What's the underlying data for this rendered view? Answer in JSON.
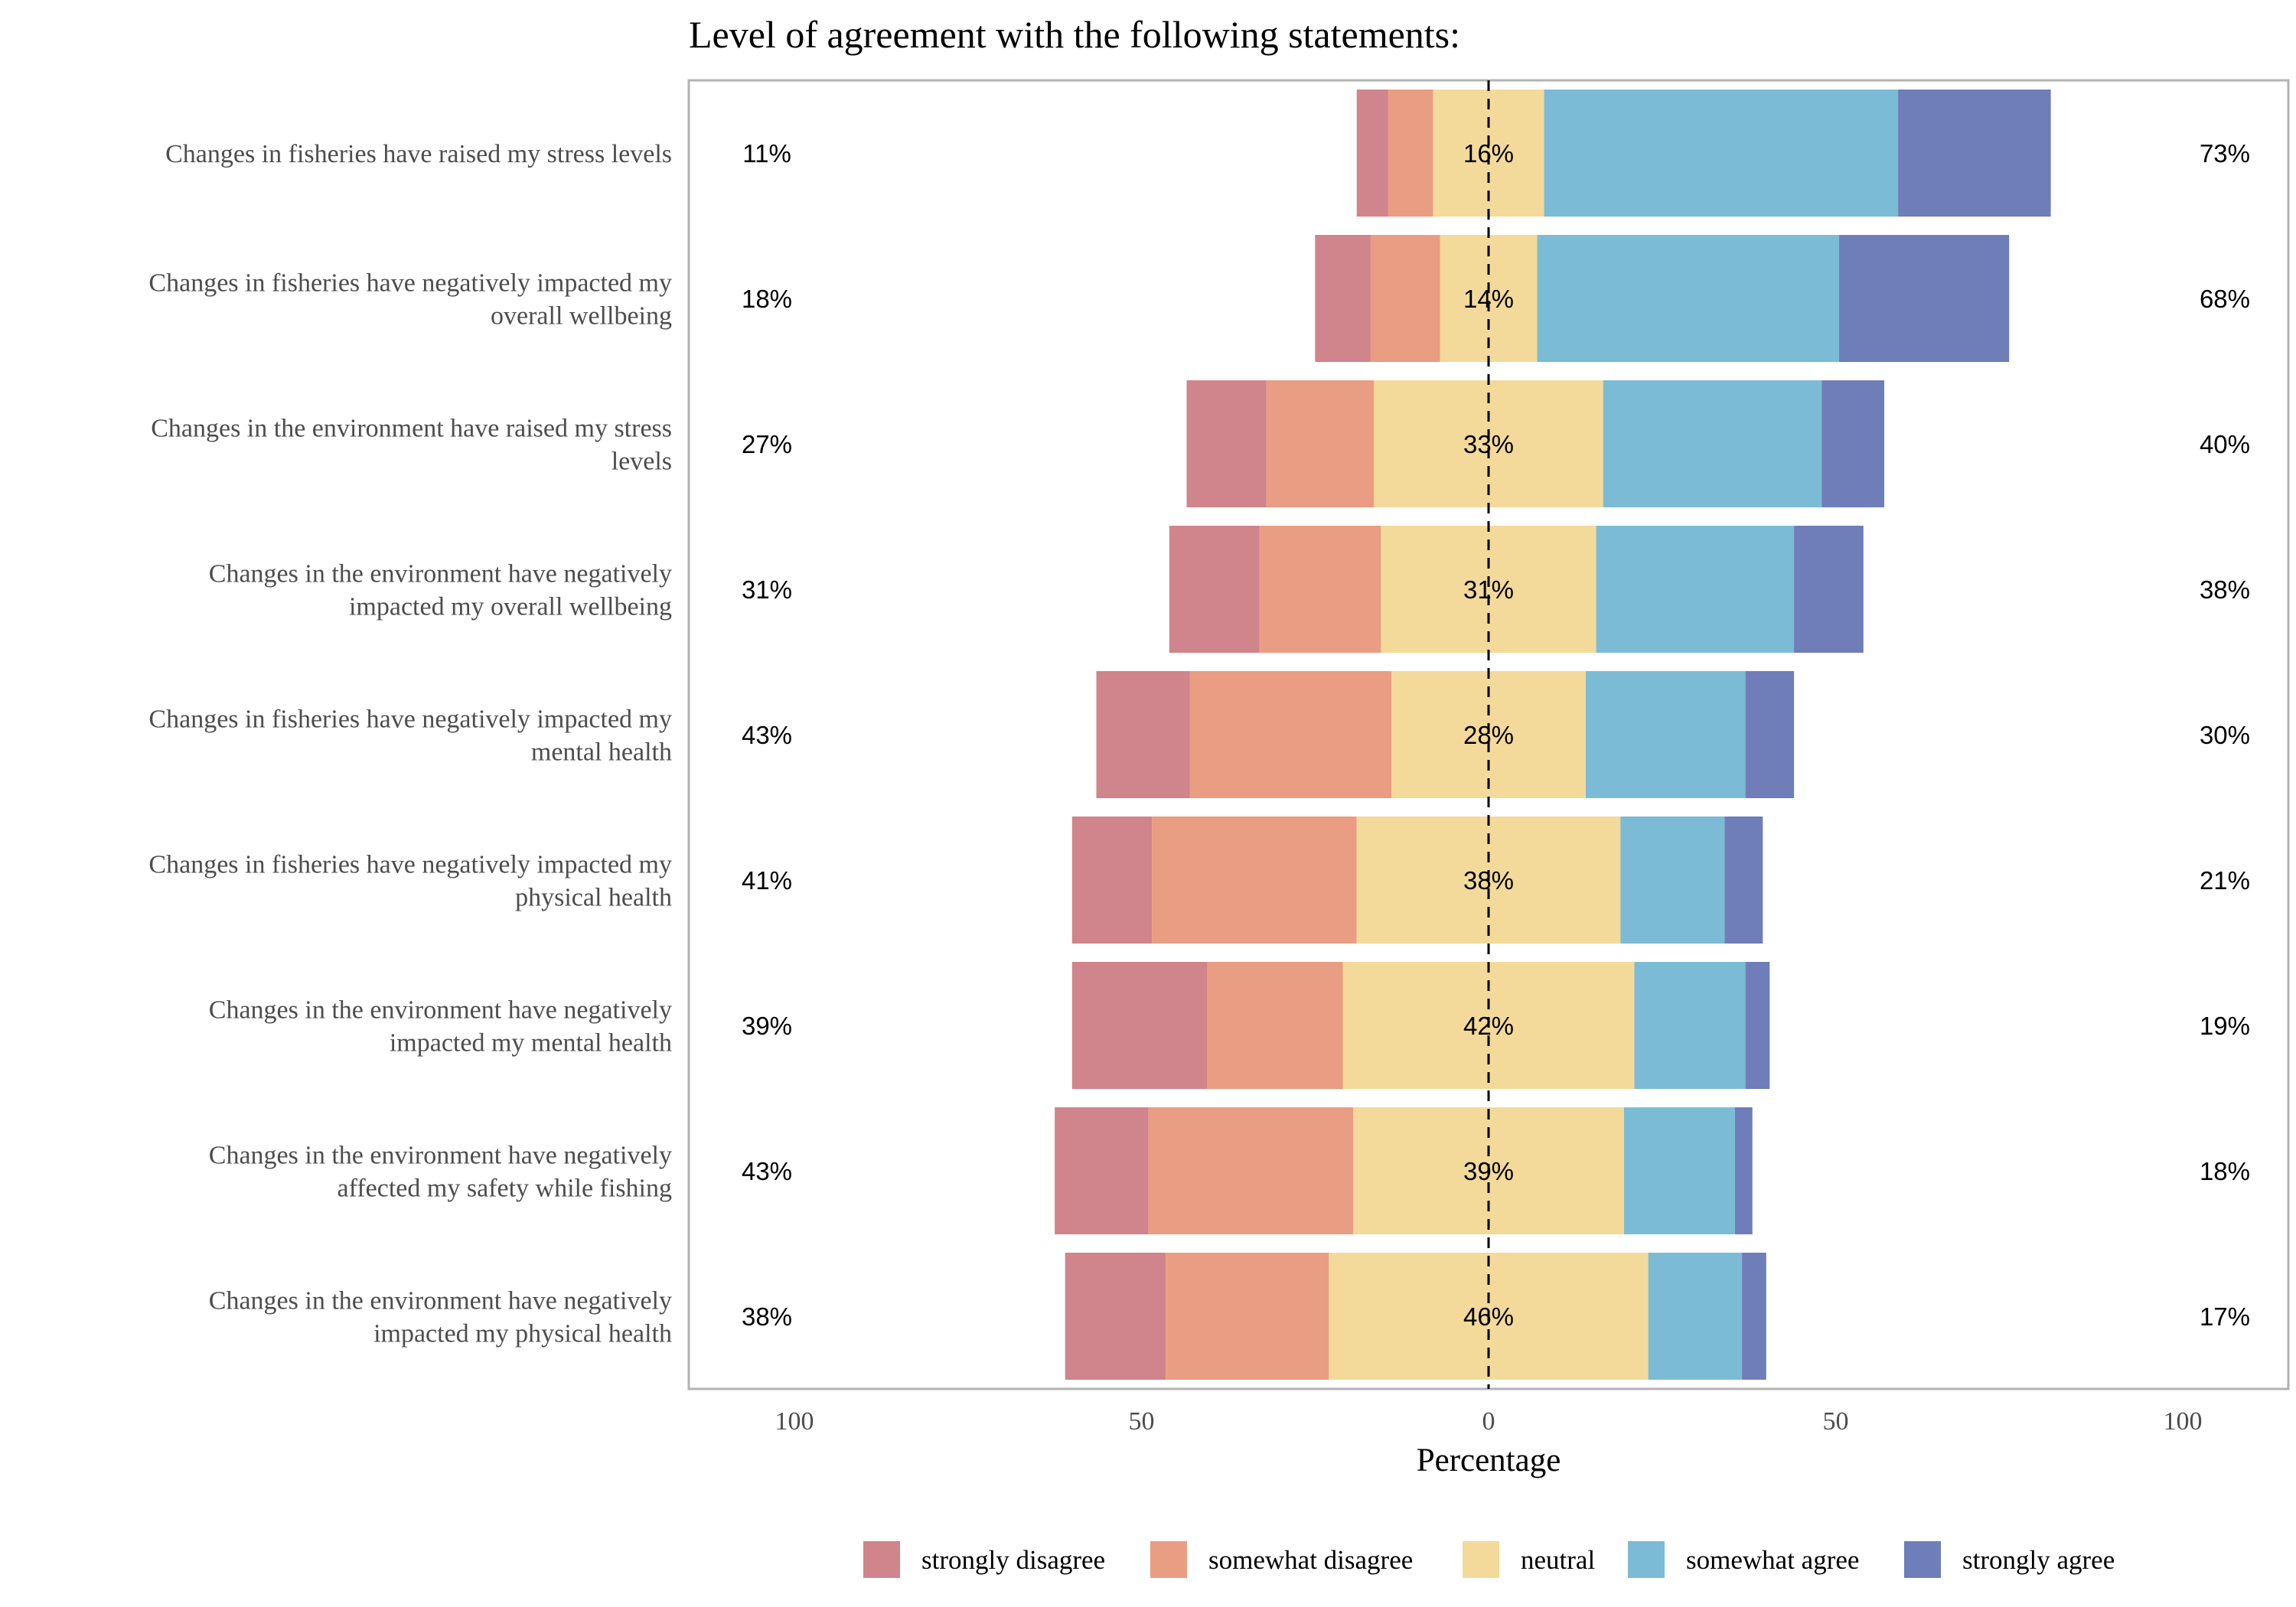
{
  "chart_data": {
    "type": "bar",
    "orientation": "horizontal-diverging-stacked",
    "title": "Level of agreement with the following statements:",
    "xlabel": "Percentage",
    "ylabel": "",
    "xlim": [
      -100,
      100
    ],
    "x_ticks": [
      -100,
      -50,
      0,
      50,
      100
    ],
    "x_tick_labels": [
      "100",
      "50",
      "0",
      "50",
      "100"
    ],
    "grid": false,
    "legend_position": "bottom",
    "categories": [
      "Changes in fisheries have raised my stress levels",
      "Changes in fisheries have negatively impacted my overall wellbeing",
      "Changes in the environment have raised my stress levels",
      "Changes in the environment have negatively impacted my overall wellbeing",
      "Changes in fisheries have negatively impacted my mental health",
      "Changes in fisheries have negatively impacted my physical health",
      "Changes in the environment have negatively impacted my mental health",
      "Changes in the environment have negatively affected my safety while fishing",
      "Changes in the environment have negatively impacted my physical health"
    ],
    "category_lines": [
      [
        "Changes in fisheries have raised my stress levels"
      ],
      [
        "Changes in fisheries have negatively impacted my",
        "overall wellbeing"
      ],
      [
        "Changes in the environment have raised my stress",
        "levels"
      ],
      [
        "Changes in the environment have negatively",
        "impacted my overall wellbeing"
      ],
      [
        "Changes in fisheries have negatively impacted my",
        "mental health"
      ],
      [
        "Changes in fisheries have negatively impacted my",
        "physical health"
      ],
      [
        "Changes in the environment have negatively",
        "impacted my mental health"
      ],
      [
        "Changes in the environment have negatively",
        "affected my safety while fishing"
      ],
      [
        "Changes in the environment have negatively",
        "impacted my physical health"
      ]
    ],
    "series": [
      {
        "name": "strongly disagree",
        "color": "#D0848B",
        "values": [
          4.5,
          8,
          11.5,
          13,
          13.5,
          11.5,
          19.5,
          13.5,
          14.5
        ]
      },
      {
        "name": "somewhat disagree",
        "color": "#E99D82",
        "values": [
          6.5,
          10,
          15.5,
          17.5,
          29,
          29.5,
          19.5,
          29.5,
          23.5
        ]
      },
      {
        "name": "neutral",
        "color": "#F4DA9A",
        "values": [
          16,
          14,
          33,
          31,
          28,
          38,
          42,
          39,
          46
        ]
      },
      {
        "name": "somewhat agree",
        "color": "#7CBBD5",
        "values": [
          51,
          43.5,
          31.5,
          28.5,
          23,
          15,
          16,
          16,
          13.5
        ]
      },
      {
        "name": "strongly agree",
        "color": "#6F7DB9",
        "values": [
          22,
          24.5,
          9,
          10,
          7,
          5.5,
          3.5,
          2.5,
          3.5
        ]
      }
    ],
    "left_labels": [
      "11%",
      "18%",
      "27%",
      "31%",
      "43%",
      "41%",
      "39%",
      "43%",
      "38%"
    ],
    "center_labels": [
      "16%",
      "14%",
      "33%",
      "31%",
      "28%",
      "38%",
      "42%",
      "39%",
      "46%"
    ],
    "right_labels": [
      "73%",
      "68%",
      "40%",
      "38%",
      "30%",
      "21%",
      "19%",
      "18%",
      "17%"
    ]
  }
}
